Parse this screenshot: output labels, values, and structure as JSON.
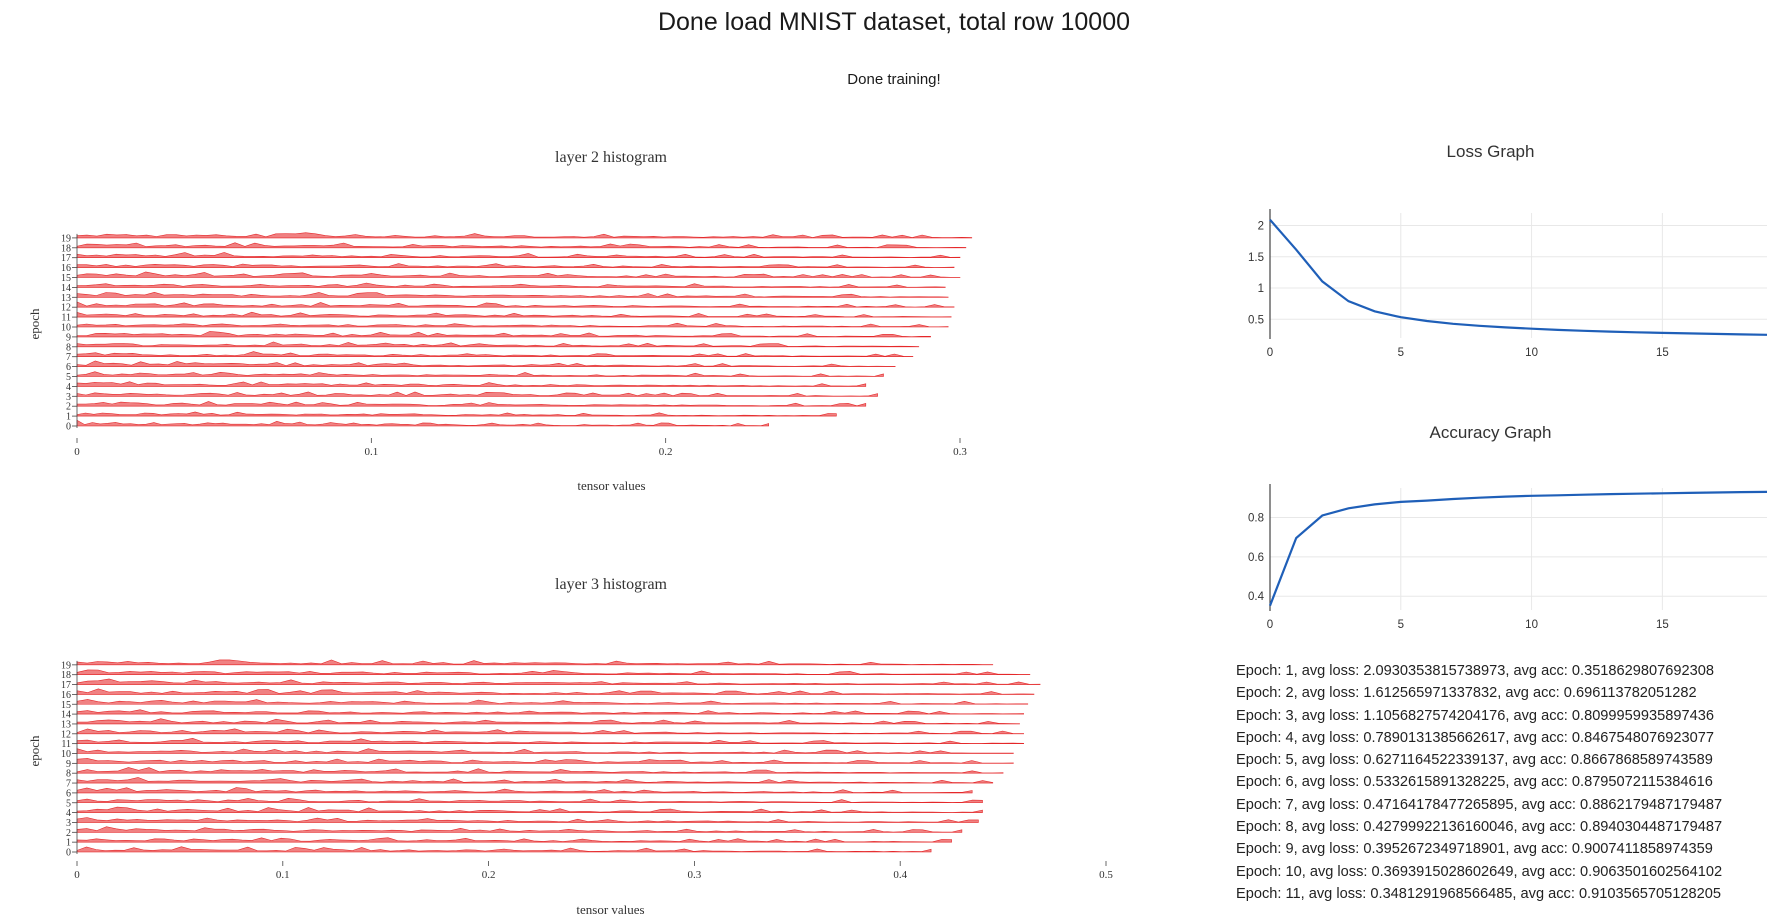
{
  "header": {
    "title": "Done load MNIST dataset, total row 10000",
    "status": "Done training!"
  },
  "colors": {
    "histogram": "#e31a1c",
    "line": "#1f5fb8",
    "grid": "#e8e8e8",
    "axis": "#444444"
  },
  "chart_data": [
    {
      "type": "histogram-ridgeline",
      "title": "layer 2 histogram",
      "xlabel": "tensor values",
      "ylabel": "epoch",
      "xlim": [
        0,
        0.3
      ],
      "xticks": [
        "0",
        "0.1",
        "0.2",
        "0.3"
      ],
      "epochs": [
        0,
        1,
        2,
        3,
        4,
        5,
        6,
        7,
        8,
        9,
        10,
        11,
        12,
        13,
        14,
        15,
        16,
        17,
        18,
        19
      ],
      "epoch_max_value": [
        0.235,
        0.258,
        0.268,
        0.272,
        0.268,
        0.274,
        0.278,
        0.284,
        0.286,
        0.29,
        0.296,
        0.297,
        0.298,
        0.296,
        0.295,
        0.3,
        0.298,
        0.3,
        0.302,
        0.304
      ]
    },
    {
      "type": "histogram-ridgeline",
      "title": "layer 3 histogram",
      "xlabel": "tensor values",
      "ylabel": "epoch",
      "xlim": [
        0,
        0.5
      ],
      "xticks": [
        "0",
        "0.1",
        "0.2",
        "0.3",
        "0.4",
        "0.5"
      ],
      "epochs": [
        0,
        1,
        2,
        3,
        4,
        5,
        6,
        7,
        8,
        9,
        10,
        11,
        12,
        13,
        14,
        15,
        16,
        17,
        18,
        19
      ],
      "epoch_max_value": [
        0.415,
        0.425,
        0.43,
        0.438,
        0.44,
        0.44,
        0.435,
        0.445,
        0.45,
        0.455,
        0.455,
        0.46,
        0.46,
        0.458,
        0.46,
        0.462,
        0.465,
        0.468,
        0.463,
        0.445
      ]
    },
    {
      "type": "line",
      "title": "Loss Graph",
      "x": [
        0,
        1,
        2,
        3,
        4,
        5,
        6,
        7,
        8,
        9,
        10,
        11,
        12,
        13,
        14,
        15,
        16,
        17,
        18,
        19
      ],
      "y": [
        2.0930353815738973,
        1.612565971337832,
        1.1056827574204176,
        0.7890131385662617,
        0.6271164522339137,
        0.5332615891328225,
        0.47164178477265895,
        0.42799922136160046,
        0.3952672349718901,
        0.3693915028602649,
        0.3481291968566485,
        0.33,
        0.315,
        0.302,
        0.291,
        0.281,
        0.273,
        0.265,
        0.258,
        0.252
      ],
      "xticks": [
        "0",
        "5",
        "10",
        "15"
      ],
      "yticks": [
        "0.5",
        "1",
        "1.5",
        "2"
      ],
      "xlim": [
        0,
        19
      ],
      "ylim": [
        0.2,
        2.2
      ]
    },
    {
      "type": "line",
      "title": "Accuracy Graph",
      "x": [
        0,
        1,
        2,
        3,
        4,
        5,
        6,
        7,
        8,
        9,
        10,
        11,
        12,
        13,
        14,
        15,
        16,
        17,
        18,
        19
      ],
      "y": [
        0.3518629807692308,
        0.696113782051282,
        0.8099959935897436,
        0.8467548076923077,
        0.8667868589743589,
        0.8795072115384616,
        0.8862179487179487,
        0.8940304487179487,
        0.9007411858974359,
        0.9063501602564102,
        0.9103565705128205,
        0.913,
        0.916,
        0.919,
        0.921,
        0.923,
        0.925,
        0.927,
        0.929,
        0.93
      ],
      "xticks": [
        "0",
        "5",
        "10",
        "15"
      ],
      "yticks": [
        "0.4",
        "0.6",
        "0.8"
      ],
      "xlim": [
        0,
        19
      ],
      "ylim": [
        0.33,
        0.95
      ]
    }
  ],
  "epoch_log": [
    "Epoch: 1, avg loss: 2.0930353815738973, avg acc: 0.3518629807692308",
    "Epoch: 2, avg loss: 1.612565971337832, avg acc: 0.696113782051282",
    "Epoch: 3, avg loss: 1.1056827574204176, avg acc: 0.8099959935897436",
    "Epoch: 4, avg loss: 0.7890131385662617, avg acc: 0.8467548076923077",
    "Epoch: 5, avg loss: 0.6271164522339137, avg acc: 0.8667868589743589",
    "Epoch: 6, avg loss: 0.5332615891328225, avg acc: 0.8795072115384616",
    "Epoch: 7, avg loss: 0.47164178477265895, avg acc: 0.8862179487179487",
    "Epoch: 8, avg loss: 0.42799922136160046, avg acc: 0.8940304487179487",
    "Epoch: 9, avg loss: 0.3952672349718901, avg acc: 0.9007411858974359",
    "Epoch: 10, avg loss: 0.3693915028602649, avg acc: 0.9063501602564102",
    "Epoch: 11, avg loss: 0.3481291968566485, avg acc: 0.9103565705128205"
  ]
}
